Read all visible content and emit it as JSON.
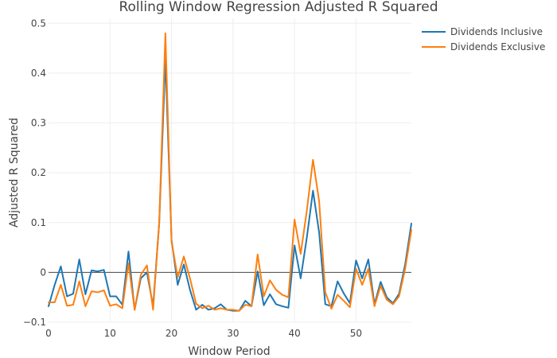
{
  "chart_data": {
    "type": "line",
    "title": "Rolling Window Regression Adjusted R Squared",
    "xlabel": "Window Period",
    "ylabel": "Adjusted R Squared",
    "xlim": [
      0,
      59
    ],
    "ylim": [
      -0.1,
      0.51
    ],
    "x_ticks": [
      0,
      10,
      20,
      30,
      40,
      50
    ],
    "y_ticks": [
      -0.1,
      0,
      0.1,
      0.2,
      0.3,
      0.4,
      0.5
    ],
    "y_tick_labels": [
      "−0.1",
      "0",
      "0.1",
      "0.2",
      "0.3",
      "0.4",
      "0.5"
    ],
    "grid": true,
    "legend_position": "top-right",
    "x": [
      0,
      1,
      2,
      3,
      4,
      5,
      6,
      7,
      8,
      9,
      10,
      11,
      12,
      13,
      14,
      15,
      16,
      17,
      18,
      19,
      20,
      21,
      22,
      23,
      24,
      25,
      26,
      27,
      28,
      29,
      30,
      31,
      32,
      33,
      34,
      35,
      36,
      37,
      38,
      39,
      40,
      41,
      42,
      43,
      44,
      45,
      46,
      47,
      48,
      49,
      50,
      51,
      52,
      53,
      54,
      55,
      56,
      57,
      58,
      59
    ],
    "series": [
      {
        "name": "Dividends Inclusive",
        "color": "#1f77b4",
        "values": [
          -0.068,
          -0.025,
          0.012,
          -0.048,
          -0.043,
          0.026,
          -0.044,
          0.004,
          0.002,
          0.005,
          -0.048,
          -0.048,
          -0.065,
          0.042,
          -0.075,
          -0.012,
          0.0,
          -0.068,
          0.1,
          0.43,
          0.065,
          -0.025,
          0.016,
          -0.035,
          -0.075,
          -0.065,
          -0.075,
          -0.072,
          -0.064,
          -0.075,
          -0.077,
          -0.077,
          -0.057,
          -0.068,
          0.002,
          -0.066,
          -0.044,
          -0.064,
          -0.068,
          -0.071,
          0.054,
          -0.012,
          0.07,
          0.164,
          0.08,
          -0.064,
          -0.068,
          -0.018,
          -0.042,
          -0.062,
          0.024,
          -0.012,
          0.026,
          -0.064,
          -0.019,
          -0.05,
          -0.062,
          -0.043,
          0.017,
          0.098
        ]
      },
      {
        "name": "Dividends Exclusive",
        "color": "#ff7f0e",
        "values": [
          -0.06,
          -0.06,
          -0.025,
          -0.067,
          -0.065,
          -0.018,
          -0.068,
          -0.038,
          -0.04,
          -0.036,
          -0.067,
          -0.064,
          -0.072,
          0.018,
          -0.075,
          -0.005,
          0.014,
          -0.075,
          0.1,
          0.48,
          0.062,
          -0.01,
          0.032,
          -0.012,
          -0.063,
          -0.072,
          -0.067,
          -0.075,
          -0.072,
          -0.075,
          -0.075,
          -0.077,
          -0.065,
          -0.068,
          0.036,
          -0.048,
          -0.016,
          -0.035,
          -0.045,
          -0.05,
          0.106,
          0.037,
          0.124,
          0.226,
          0.143,
          -0.04,
          -0.073,
          -0.045,
          -0.057,
          -0.07,
          0.007,
          -0.025,
          0.007,
          -0.068,
          -0.027,
          -0.055,
          -0.064,
          -0.048,
          0.008,
          0.085
        ]
      }
    ]
  }
}
